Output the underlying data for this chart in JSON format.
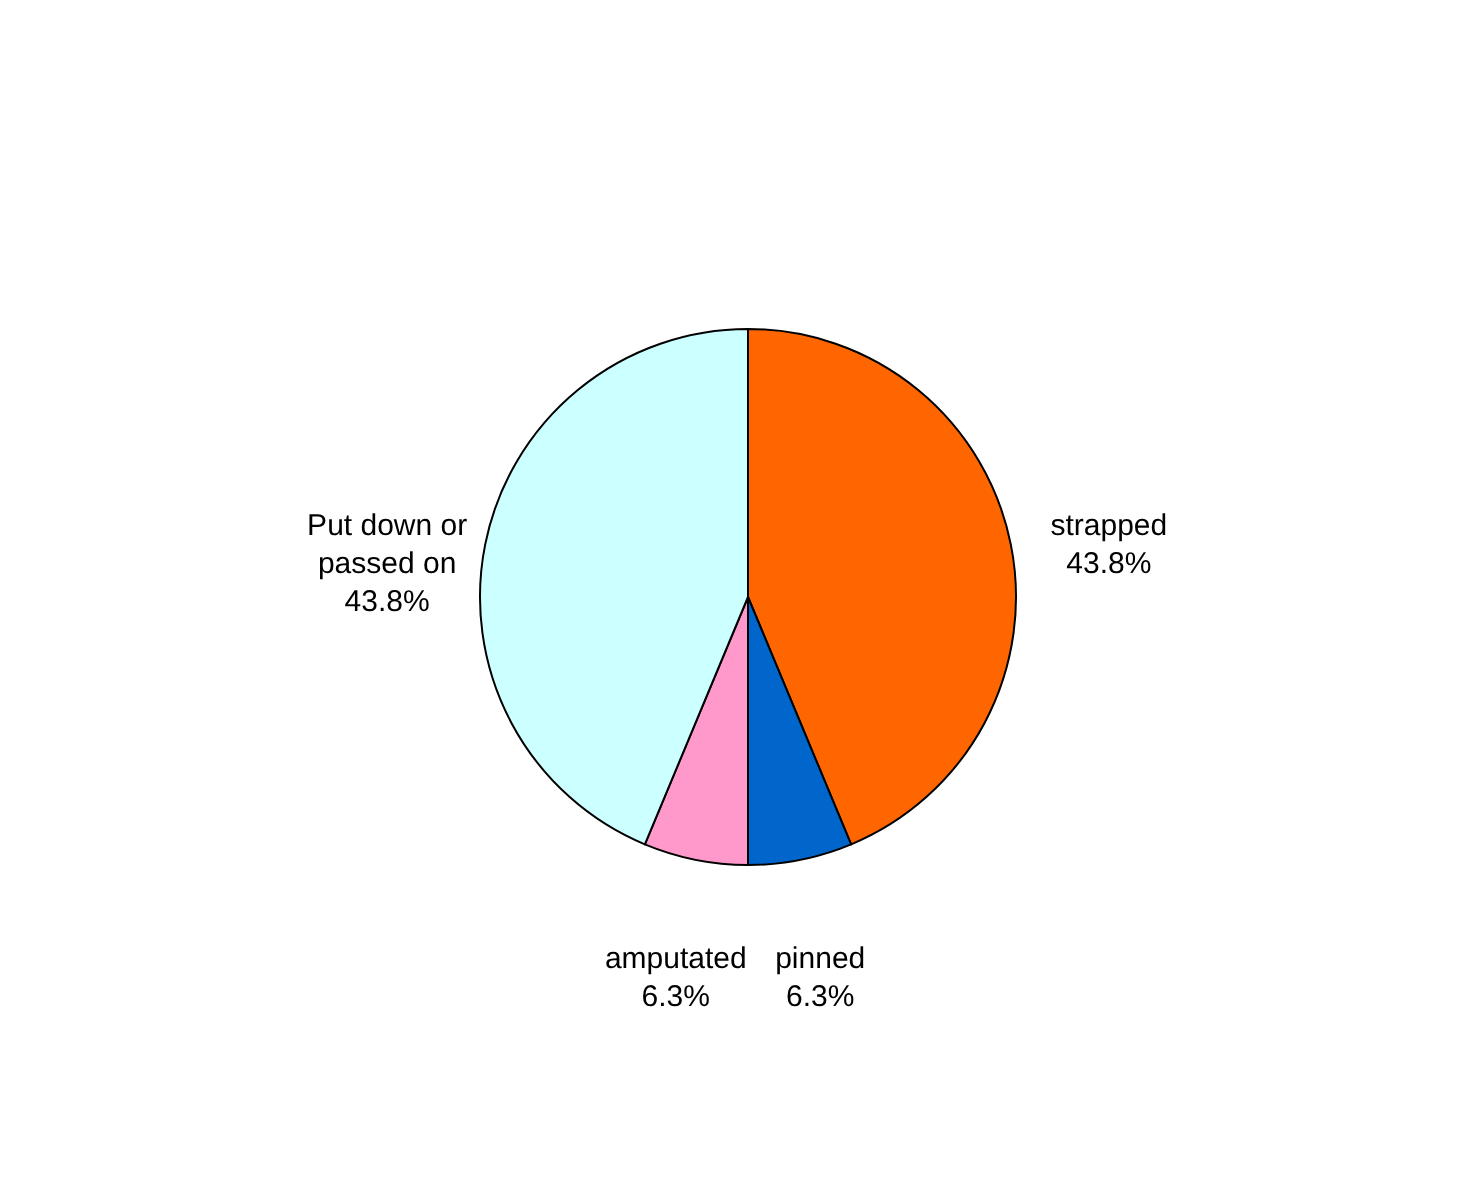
{
  "chart_data": {
    "type": "pie",
    "categories": [
      "strapped",
      "pinned",
      "amputated",
      "Put down or passed on"
    ],
    "values": [
      43.8,
      6.3,
      6.3,
      43.8
    ],
    "colors": [
      "#ff6600",
      "#0066cc",
      "#ff99cc",
      "#ccffff"
    ],
    "value_labels": [
      "43.8%",
      "6.3%",
      "6.3%",
      "43.8%"
    ]
  }
}
